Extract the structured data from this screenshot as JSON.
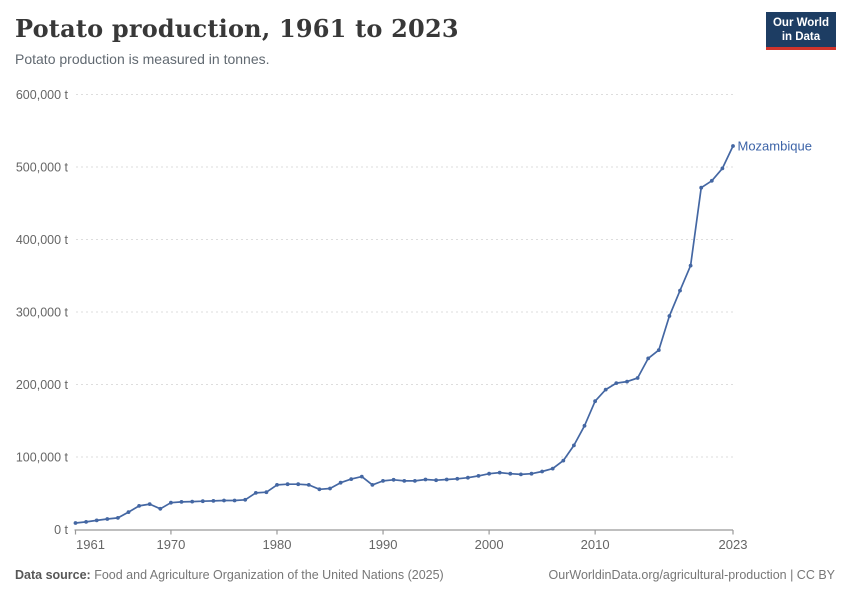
{
  "header": {
    "title": "Potato production, 1961 to 2023",
    "subtitle": "Potato production is measured in tonnes.",
    "logo": {
      "line1": "Our World",
      "line2": "in Data"
    }
  },
  "footer": {
    "source_label": "Data source:",
    "source_text": " Food and Agriculture Organization of the United Nations (2025)",
    "attribution": "OurWorldinData.org/agricultural-production | CC BY"
  },
  "colors": {
    "series": "#4467a3",
    "entity_label": "#3d64a8",
    "grid": "#dddddd",
    "axis": "#999999",
    "tick_text": "#666666",
    "logo_bg": "#1d3d63",
    "logo_underline": "#d0342c"
  },
  "chart_data": {
    "type": "line",
    "title": "Potato production, 1961 to 2023",
    "unit": "tonnes",
    "entity": "Mozambique",
    "legend_position": "end-of-line-label",
    "grid": "dashed-horizontal",
    "xlim": [
      1961,
      2023
    ],
    "ylim": [
      0,
      600000
    ],
    "start_year": 1961,
    "end_year": 2023,
    "values": [
      9000,
      10500,
      12500,
      14500,
      16000,
      24000,
      32500,
      35000,
      28500,
      37000,
      38000,
      38500,
      39000,
      39500,
      40000,
      40000,
      41000,
      50500,
      51500,
      61500,
      62500,
      62500,
      61500,
      55500,
      56500,
      64500,
      69500,
      73000,
      61500,
      67000,
      68500,
      67000,
      67000,
      69000,
      68000,
      69000,
      70000,
      71500,
      74000,
      77000,
      78500,
      77000,
      76000,
      77000,
      80000,
      84000,
      95000,
      116000,
      143000,
      177000,
      193000,
      202000,
      204000,
      209000,
      236000,
      247500,
      294500,
      329500,
      364000,
      471500,
      481000,
      498000,
      529000
    ],
    "x_ticks": [
      {
        "v": 1961,
        "label": "1961"
      },
      {
        "v": 1970,
        "label": "1970"
      },
      {
        "v": 1980,
        "label": "1980"
      },
      {
        "v": 1990,
        "label": "1990"
      },
      {
        "v": 2000,
        "label": "2000"
      },
      {
        "v": 2010,
        "label": "2010"
      },
      {
        "v": 2023,
        "label": "2023"
      }
    ],
    "y_ticks": [
      {
        "v": 0,
        "label": "0 t"
      },
      {
        "v": 100000,
        "label": "100,000 t"
      },
      {
        "v": 200000,
        "label": "200,000 t"
      },
      {
        "v": 300000,
        "label": "300,000 t"
      },
      {
        "v": 400000,
        "label": "400,000 t"
      },
      {
        "v": 500000,
        "label": "500,000 t"
      },
      {
        "v": 600000,
        "label": "600,000 t"
      }
    ]
  }
}
